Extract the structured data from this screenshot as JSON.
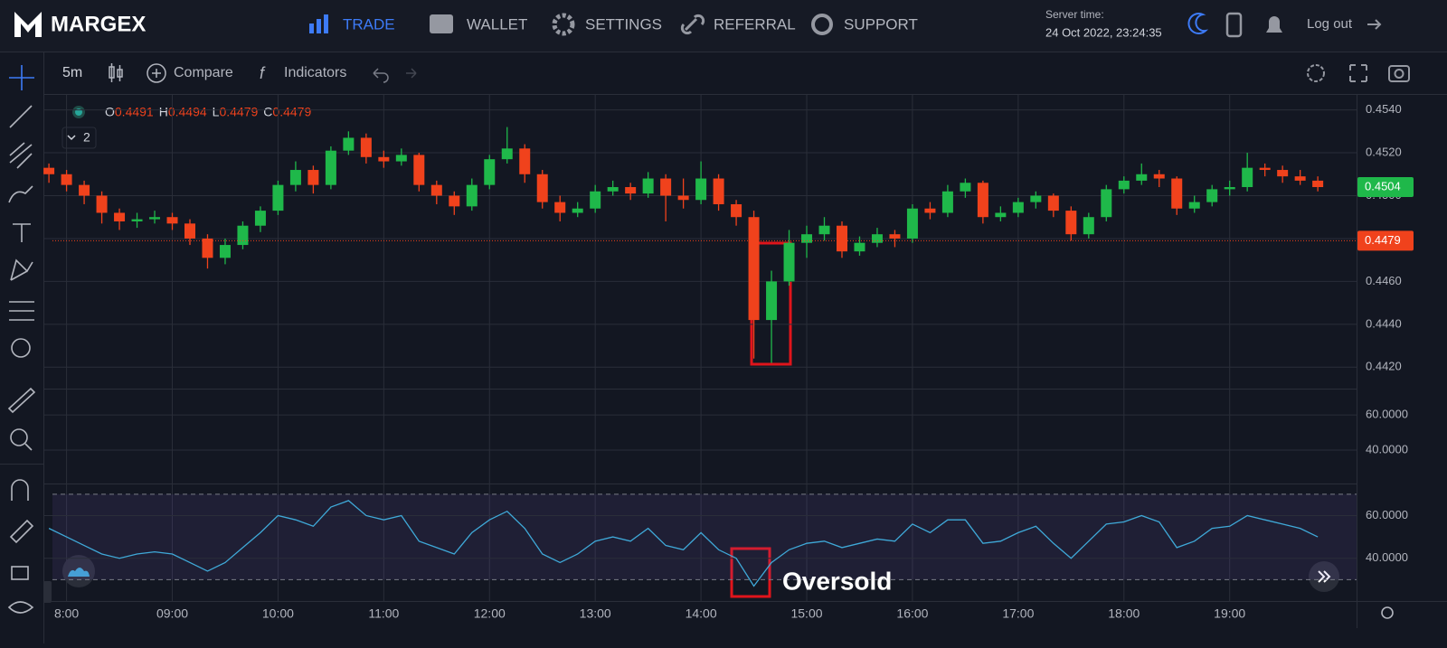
{
  "header": {
    "logo": "MARGEX",
    "nav": [
      "TRADE",
      "WALLET",
      "SETTINGS",
      "REFERRAL",
      "SUPPORT"
    ],
    "server_label": "Server time:",
    "server_time": "24 Oct 2022, 23:24:35",
    "logout": "Log out"
  },
  "toolbar": {
    "interval": "5m",
    "compare": "Compare",
    "indicators": "Indicators"
  },
  "legend": {
    "items": [
      [
        "O",
        "0.4491"
      ],
      [
        "H",
        "0.4494"
      ],
      [
        "L",
        "0.4479"
      ],
      [
        "C",
        "0.4479"
      ]
    ],
    "collapse": "2"
  },
  "chart_data": [
    {
      "type": "candlestick",
      "up_color": "#1fb84a",
      "down_color": "#f0421c",
      "x": [
        470,
        480,
        490,
        500,
        510,
        520,
        530,
        540,
        550,
        560,
        570,
        580,
        590,
        600,
        610,
        620,
        630,
        640,
        650,
        660,
        670,
        680,
        690,
        700,
        710,
        720,
        730,
        740,
        750,
        760,
        770,
        780,
        790,
        800,
        810,
        820,
        830,
        840,
        850,
        860,
        870,
        880,
        890,
        900,
        910,
        920,
        930,
        940,
        950,
        960,
        970,
        980,
        990,
        1000,
        1010,
        1020,
        1030,
        1040,
        1050,
        1060,
        1070,
        1080,
        1090,
        1100,
        1110,
        1120,
        1130,
        1140,
        1150,
        1160,
        1170,
        1180,
        1190
      ],
      "ohlc": [
        [
          0.4513,
          0.4515,
          0.4506,
          0.451
        ],
        [
          0.451,
          0.4512,
          0.4502,
          0.4505
        ],
        [
          0.4505,
          0.4507,
          0.4496,
          0.45
        ],
        [
          0.45,
          0.4502,
          0.4487,
          0.4492
        ],
        [
          0.4492,
          0.4494,
          0.4484,
          0.4488
        ],
        [
          0.4488,
          0.4492,
          0.4485,
          0.4489
        ],
        [
          0.4489,
          0.4493,
          0.4487,
          0.449
        ],
        [
          0.449,
          0.4492,
          0.4484,
          0.4487
        ],
        [
          0.4487,
          0.4489,
          0.4477,
          0.448
        ],
        [
          0.448,
          0.4482,
          0.4466,
          0.4471
        ],
        [
          0.4471,
          0.448,
          0.4468,
          0.4477
        ],
        [
          0.4477,
          0.4488,
          0.4475,
          0.4486
        ],
        [
          0.4486,
          0.4495,
          0.4483,
          0.4493
        ],
        [
          0.4493,
          0.4507,
          0.4491,
          0.4505
        ],
        [
          0.4505,
          0.4516,
          0.4502,
          0.4512
        ],
        [
          0.4512,
          0.4514,
          0.4501,
          0.4505
        ],
        [
          0.4505,
          0.4523,
          0.4503,
          0.4521
        ],
        [
          0.4521,
          0.453,
          0.4519,
          0.4527
        ],
        [
          0.4527,
          0.4529,
          0.4515,
          0.4518
        ],
        [
          0.4518,
          0.4521,
          0.4513,
          0.4516
        ],
        [
          0.4516,
          0.4522,
          0.4514,
          0.4519
        ],
        [
          0.4519,
          0.452,
          0.4502,
          0.4505
        ],
        [
          0.4505,
          0.4507,
          0.4496,
          0.45
        ],
        [
          0.45,
          0.4502,
          0.4491,
          0.4495
        ],
        [
          0.4495,
          0.4508,
          0.4493,
          0.4505
        ],
        [
          0.4505,
          0.4519,
          0.4503,
          0.4517
        ],
        [
          0.4517,
          0.4532,
          0.4515,
          0.4522
        ],
        [
          0.4522,
          0.4524,
          0.4506,
          0.451
        ],
        [
          0.451,
          0.4512,
          0.4494,
          0.4497
        ],
        [
          0.4497,
          0.45,
          0.4488,
          0.4492
        ],
        [
          0.4492,
          0.4497,
          0.449,
          0.4494
        ],
        [
          0.4494,
          0.4505,
          0.4492,
          0.4502
        ],
        [
          0.4502,
          0.4507,
          0.45,
          0.4504
        ],
        [
          0.4504,
          0.4506,
          0.4498,
          0.4501
        ],
        [
          0.4501,
          0.4511,
          0.4499,
          0.4508
        ],
        [
          0.4508,
          0.451,
          0.4488,
          0.45
        ],
        [
          0.45,
          0.4508,
          0.4494,
          0.4498
        ],
        [
          0.4498,
          0.4516,
          0.4496,
          0.4508
        ],
        [
          0.4508,
          0.451,
          0.4493,
          0.4496
        ],
        [
          0.4496,
          0.4498,
          0.4486,
          0.449
        ],
        [
          0.449,
          0.4493,
          0.4424,
          0.4442
        ],
        [
          0.4442,
          0.4465,
          0.4422,
          0.446
        ],
        [
          0.446,
          0.4484,
          0.4458,
          0.4478
        ],
        [
          0.4478,
          0.4486,
          0.4471,
          0.4482
        ],
        [
          0.4482,
          0.449,
          0.4479,
          0.4486
        ],
        [
          0.4486,
          0.4488,
          0.4471,
          0.4474
        ],
        [
          0.4474,
          0.4481,
          0.4472,
          0.4478
        ],
        [
          0.4478,
          0.4485,
          0.4476,
          0.4482
        ],
        [
          0.4482,
          0.4484,
          0.4476,
          0.448
        ],
        [
          0.448,
          0.4496,
          0.4478,
          0.4494
        ],
        [
          0.4494,
          0.4497,
          0.4489,
          0.4492
        ],
        [
          0.4492,
          0.4505,
          0.449,
          0.4502
        ],
        [
          0.4502,
          0.4508,
          0.4499,
          0.4506
        ],
        [
          0.4506,
          0.4507,
          0.4487,
          0.449
        ],
        [
          0.449,
          0.4495,
          0.4488,
          0.4492
        ],
        [
          0.4492,
          0.4499,
          0.449,
          0.4497
        ],
        [
          0.4497,
          0.4502,
          0.4494,
          0.45
        ],
        [
          0.45,
          0.4501,
          0.449,
          0.4493
        ],
        [
          0.4493,
          0.4495,
          0.4479,
          0.4482
        ],
        [
          0.4482,
          0.4492,
          0.448,
          0.449
        ],
        [
          0.449,
          0.4505,
          0.4488,
          0.4503
        ],
        [
          0.4503,
          0.4509,
          0.4501,
          0.4507
        ],
        [
          0.4507,
          0.4515,
          0.4505,
          0.451
        ],
        [
          0.451,
          0.4512,
          0.4504,
          0.4508
        ],
        [
          0.4508,
          0.4509,
          0.4491,
          0.4494
        ],
        [
          0.4494,
          0.45,
          0.4492,
          0.4497
        ],
        [
          0.4497,
          0.4505,
          0.4495,
          0.4503
        ],
        [
          0.4503,
          0.4507,
          0.45,
          0.4504
        ],
        [
          0.4504,
          0.452,
          0.4502,
          0.4513
        ],
        [
          0.4513,
          0.4515,
          0.4509,
          0.4512
        ],
        [
          0.4512,
          0.4514,
          0.4506,
          0.4509
        ],
        [
          0.4509,
          0.4512,
          0.4505,
          0.4507
        ],
        [
          0.4507,
          0.4509,
          0.4502,
          0.4504
        ]
      ],
      "xlim": [
        472,
        1212
      ],
      "xticks": [
        {
          "value": 480,
          "label": "8:00"
        },
        {
          "value": 540,
          "label": "09:00"
        },
        {
          "value": 600,
          "label": "10:00"
        },
        {
          "value": 660,
          "label": "11:00"
        },
        {
          "value": 720,
          "label": "12:00"
        },
        {
          "value": 780,
          "label": "13:00"
        },
        {
          "value": 840,
          "label": "14:00"
        },
        {
          "value": 900,
          "label": "15:00"
        },
        {
          "value": 960,
          "label": "16:00"
        },
        {
          "value": 1020,
          "label": "17:00"
        },
        {
          "value": 1080,
          "label": "18:00"
        },
        {
          "value": 1140,
          "label": "19:00"
        }
      ],
      "ylim": [
        0.441,
        0.4547
      ],
      "yticks": [
        {
          "value": 0.454,
          "label": "0.4540"
        },
        {
          "value": 0.452,
          "label": "0.4520"
        },
        {
          "value": 0.45,
          "label": "0.4500"
        },
        {
          "value": 0.448,
          "label": "0.4480"
        },
        {
          "value": 0.446,
          "label": "0.4460"
        },
        {
          "value": 0.444,
          "label": "0.4440"
        },
        {
          "value": 0.442,
          "label": "0.4420"
        }
      ],
      "grid": true,
      "price_lines": [
        {
          "value": 0.4504,
          "label": "0.4504",
          "color": "#1fb84a",
          "dotted": false
        },
        {
          "value": 0.4479,
          "label": "0.4479",
          "color": "#f0421c",
          "dotted": true
        }
      ]
    },
    {
      "type": "empty",
      "ylim": [
        21,
        75
      ],
      "yticks": [
        {
          "value": 60,
          "label": "60.0000"
        },
        {
          "value": 40,
          "label": "40.0000"
        }
      ]
    },
    {
      "type": "line",
      "color": "#3fa9d8",
      "values": [
        54,
        50,
        46,
        42,
        40,
        42,
        43,
        42,
        38,
        34,
        38,
        45,
        52,
        60,
        58,
        55,
        64,
        67,
        60,
        58,
        60,
        48,
        45,
        42,
        52,
        58,
        62,
        54,
        42,
        38,
        42,
        48,
        50,
        48,
        54,
        46,
        44,
        52,
        44,
        40,
        27,
        38,
        44,
        47,
        48,
        45,
        47,
        49,
        48,
        56,
        52,
        58,
        58,
        47,
        48,
        52,
        55,
        47,
        40,
        48,
        56,
        57,
        60,
        57,
        45,
        48,
        54,
        55,
        60,
        58,
        56,
        54,
        50
      ],
      "ylim": [
        20,
        75
      ],
      "yticks": [
        {
          "value": 60,
          "label": "60.0000"
        },
        {
          "value": 40,
          "label": "40.0000"
        }
      ],
      "levels": [
        70,
        30
      ],
      "annotation": "Oversold"
    }
  ]
}
